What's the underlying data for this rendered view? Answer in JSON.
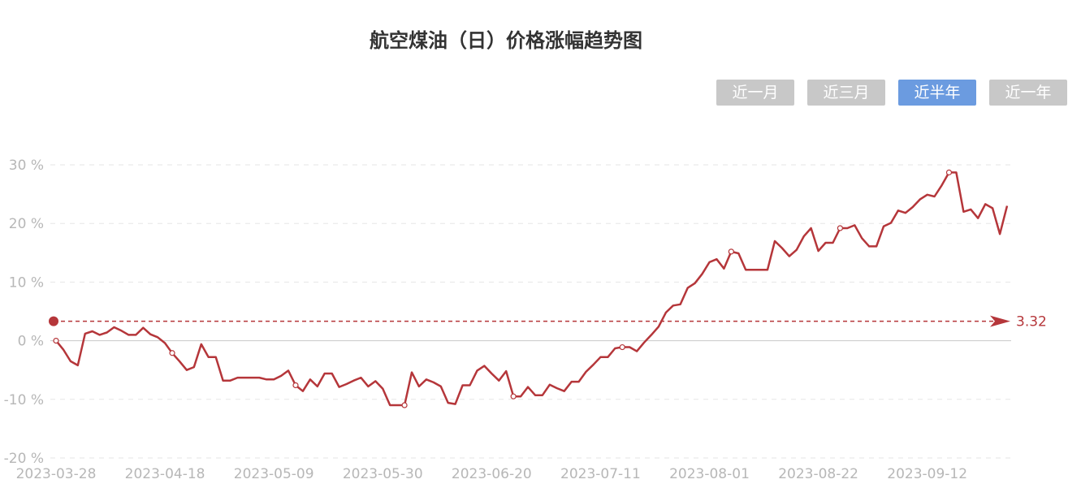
{
  "title": "航空煤油（日）价格涨幅趋势图",
  "range_buttons": [
    {
      "label": "近一月",
      "active": false
    },
    {
      "label": "近三月",
      "active": false
    },
    {
      "label": "近半年",
      "active": true
    },
    {
      "label": "近一年",
      "active": false
    }
  ],
  "colors": {
    "line": "#b5363a",
    "grid": "#e6e6e6",
    "active_button": "#6b9be0",
    "inactive_button": "#c8c8c8"
  },
  "chart_data": {
    "type": "line",
    "title": "航空煤油（日）价格涨幅趋势图",
    "ylim": [
      -20,
      30
    ],
    "yticks": [
      30,
      20,
      10,
      0,
      -10,
      -20
    ],
    "ytick_labels": [
      "30 %",
      "20 %",
      "10 %",
      "0 %",
      "-10 %",
      "-20 %"
    ],
    "xtick_labels": [
      "2023-03-28",
      "2023-04-18",
      "2023-05-09",
      "2023-05-30",
      "2023-06-20",
      "2023-07-11",
      "2023-08-01",
      "2023-08-22",
      "2023-09-12"
    ],
    "grid": true,
    "reference_line": {
      "value": 3.32,
      "label": "3.32"
    },
    "series": [
      {
        "values": [
          0,
          -1.5,
          -3.5,
          -4.2,
          1.2,
          1.6,
          1.0,
          1.4,
          2.3,
          1.7,
          1.0,
          1.0,
          2.2,
          1.1,
          0.6,
          -0.4,
          -2.1,
          -3.5,
          -5.0,
          -4.5,
          -0.6,
          -2.8,
          -2.8,
          -6.8,
          -6.8,
          -6.3,
          -6.3,
          -6.3,
          -6.3,
          -6.6,
          -6.6,
          -6.0,
          -5.1,
          -7.6,
          -8.6,
          -6.6,
          -7.8,
          -5.6,
          -5.6,
          -7.9,
          -7.4,
          -6.8,
          -6.3,
          -7.8,
          -6.9,
          -8.2,
          -11.0,
          -11.0,
          -11.0,
          -5.4,
          -7.8,
          -6.6,
          -7.1,
          -7.8,
          -10.6,
          -10.8,
          -7.6,
          -7.6,
          -5.1,
          -4.3,
          -5.6,
          -6.8,
          -5.2,
          -9.5,
          -9.5,
          -7.9,
          -9.3,
          -9.3,
          -7.5,
          -8.1,
          -8.6,
          -7.0,
          -7.0,
          -5.3,
          -4.1,
          -2.8,
          -2.8,
          -1.3,
          -1.1,
          -1.1,
          -1.8,
          -0.3,
          1.0,
          2.4,
          4.8,
          6.0,
          6.2,
          9.0,
          9.8,
          11.4,
          13.4,
          13.9,
          12.3,
          15.2,
          14.9,
          12.1,
          12.1,
          12.1,
          12.1,
          17.0,
          15.8,
          14.4,
          15.5,
          17.8,
          19.2,
          15.3,
          16.7,
          16.7,
          19.2,
          19.2,
          19.7,
          17.5,
          16.1,
          16.1,
          19.5,
          20.1,
          22.2,
          21.8,
          22.8,
          24.1,
          24.9,
          24.6,
          26.5,
          28.7,
          28.7,
          22.0,
          22.4,
          20.9,
          23.3,
          22.6,
          18.2,
          23.0
        ],
        "marker_indices": [
          0,
          16,
          33,
          48,
          63,
          78,
          93,
          108,
          123
        ]
      }
    ]
  }
}
